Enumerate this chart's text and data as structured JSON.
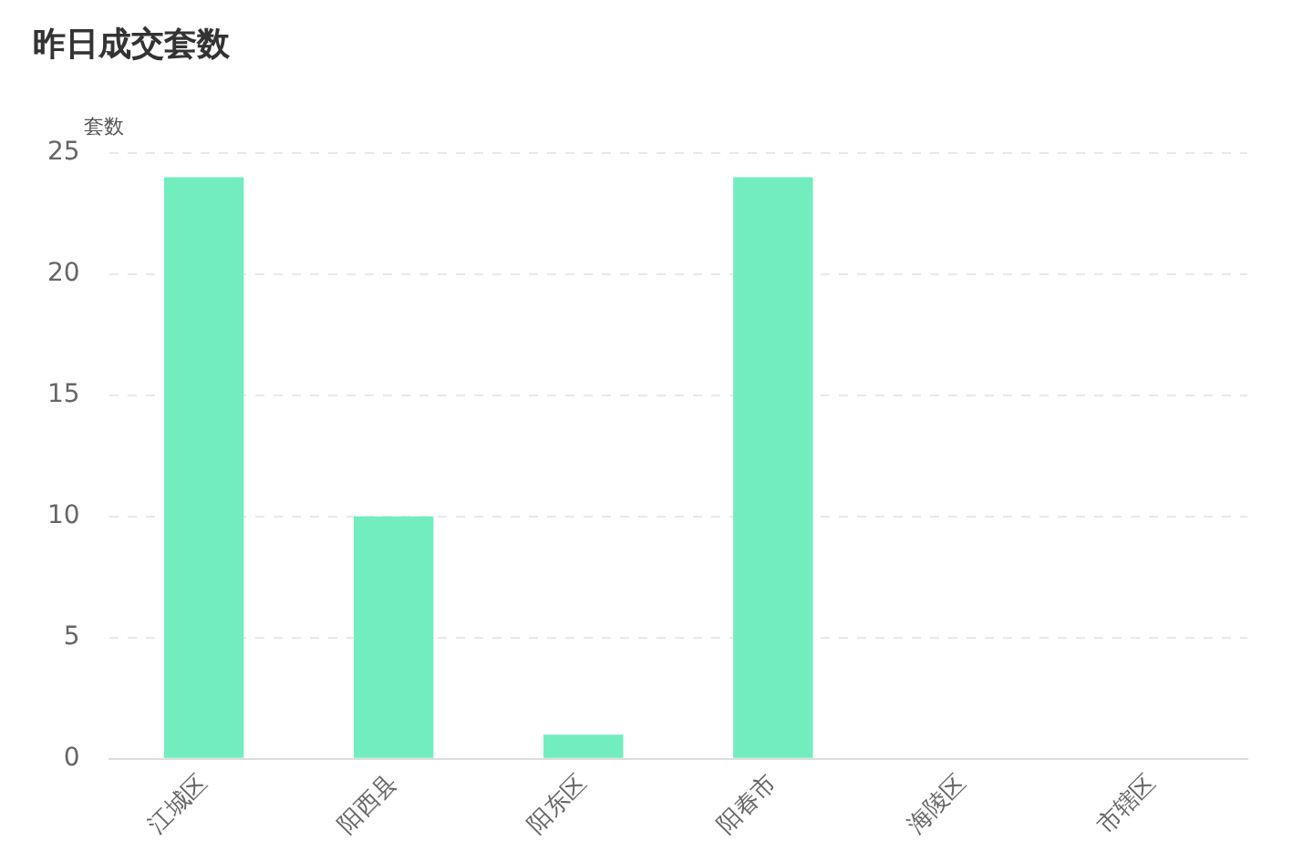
{
  "chart_data": {
    "type": "bar",
    "title": "昨日成交套数",
    "ylabel": "套数",
    "categories": [
      "江城区",
      "阳西县",
      "阳东区",
      "阳春市",
      "海陵区",
      "市辖区"
    ],
    "values": [
      24,
      10,
      1,
      24,
      0,
      0
    ],
    "color": "#72edbf",
    "ylim": [
      0,
      25
    ],
    "yticks": [
      0,
      5,
      10,
      15,
      20,
      25
    ],
    "grid": "y"
  }
}
